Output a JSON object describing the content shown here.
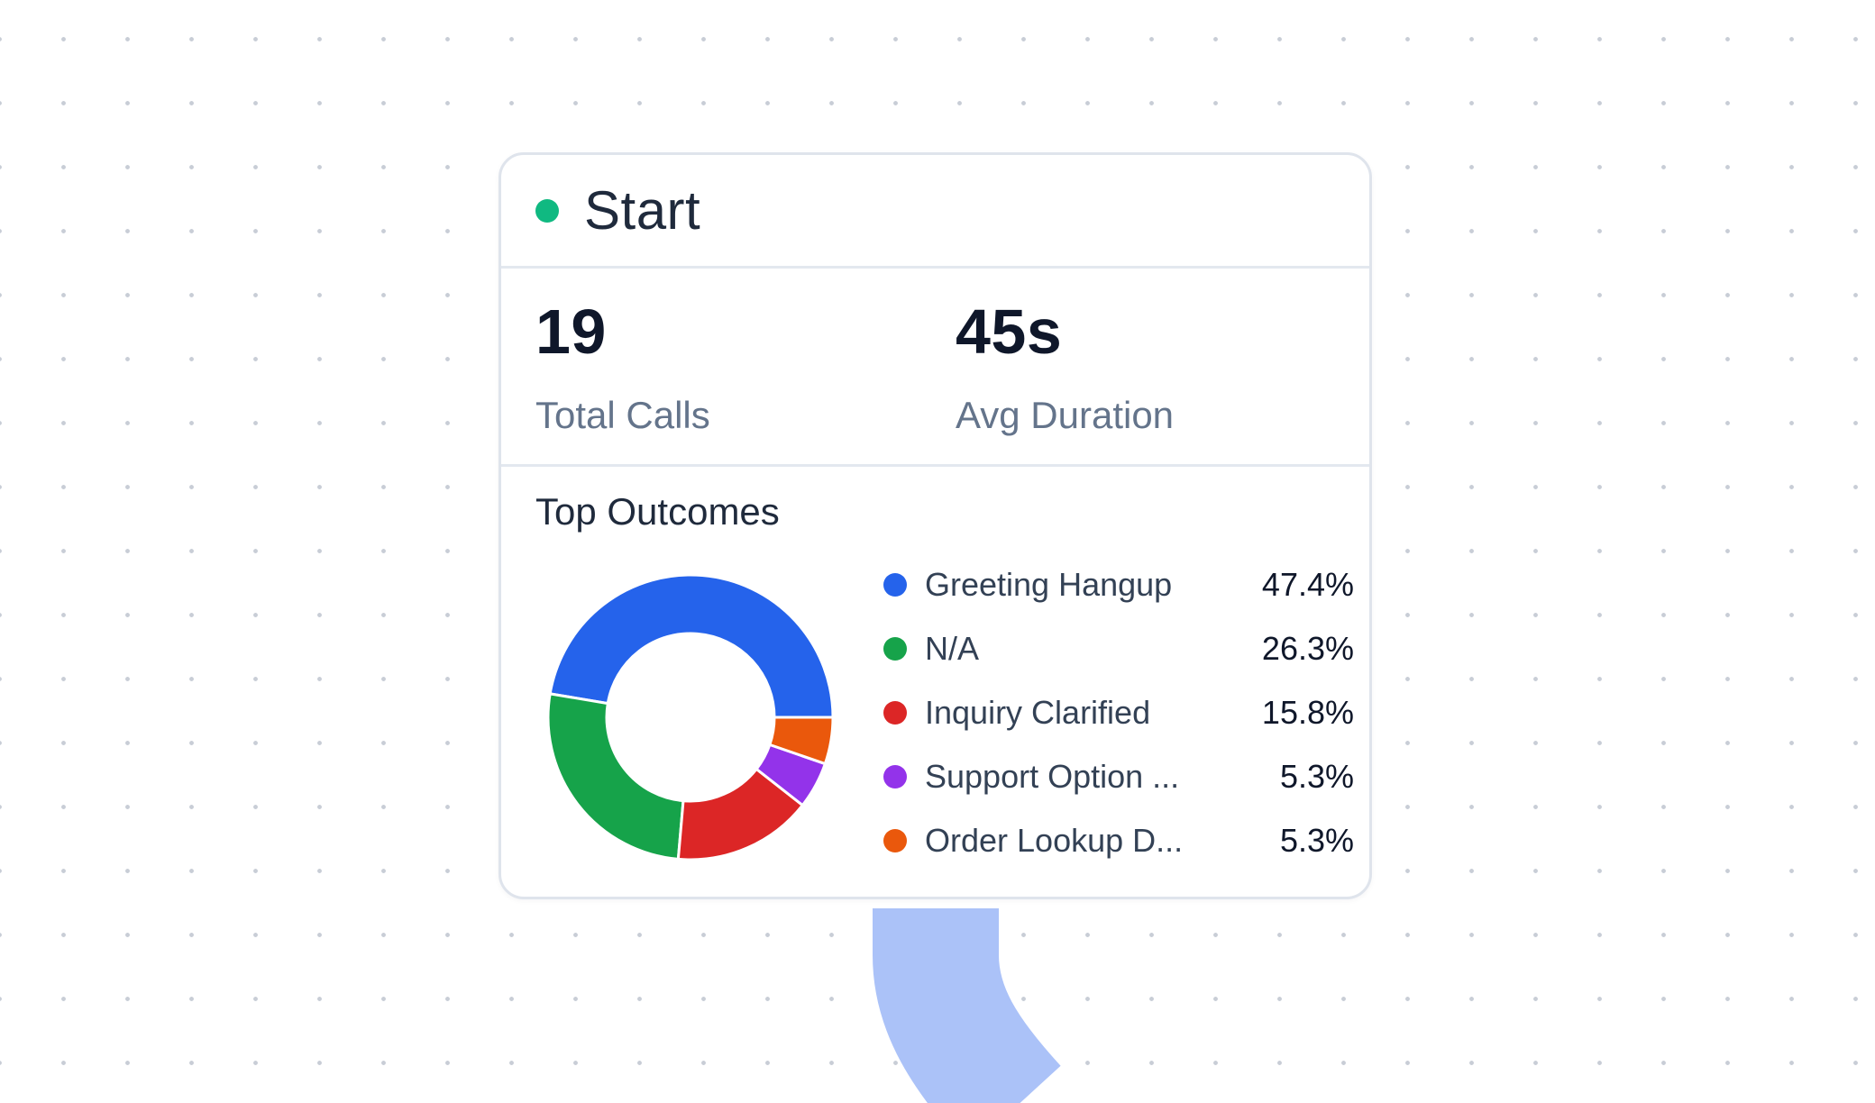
{
  "node": {
    "title": "Start",
    "status_color": "#10b981",
    "status_dot_icon": "status-dot-icon"
  },
  "stats": {
    "total_calls": {
      "value": "19",
      "label": "Total Calls"
    },
    "avg_duration": {
      "value": "45s",
      "label": "Avg Duration"
    }
  },
  "outcomes": {
    "title": "Top Outcomes",
    "items": [
      {
        "label": "Greeting Hangup",
        "percent_text": "47.4%",
        "color": "#2563eb"
      },
      {
        "label": "N/A",
        "percent_text": "26.3%",
        "color": "#16a34a"
      },
      {
        "label": "Inquiry Clarified",
        "percent_text": "15.8%",
        "color": "#dc2626"
      },
      {
        "label": "Support Option ...",
        "percent_text": "5.3%",
        "color": "#9333ea"
      },
      {
        "label": "Order Lookup D...",
        "percent_text": "5.3%",
        "color": "#ea580c"
      }
    ]
  },
  "chart_data": {
    "type": "pie",
    "title": "Top Outcomes",
    "categories": [
      "Greeting Hangup",
      "N/A",
      "Inquiry Clarified",
      "Support Option ...",
      "Order Lookup D..."
    ],
    "values": [
      47.4,
      26.3,
      15.8,
      5.3,
      5.3
    ],
    "colors": [
      "#2563eb",
      "#16a34a",
      "#dc2626",
      "#9333ea",
      "#ea580c"
    ],
    "donut": true
  },
  "connector": {
    "color": "#abc2f8"
  }
}
